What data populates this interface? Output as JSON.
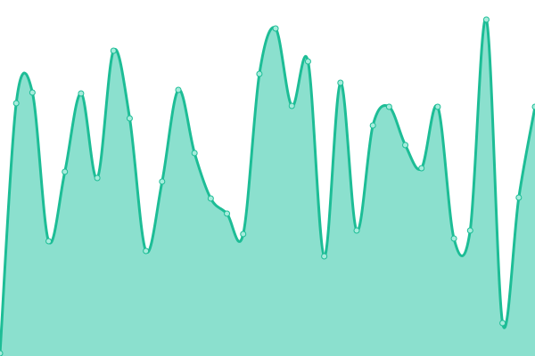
{
  "chart_data": {
    "type": "area",
    "x": [
      0,
      1,
      2,
      3,
      4,
      5,
      6,
      7,
      8,
      9,
      10,
      11,
      12,
      13,
      14,
      15,
      16,
      17,
      18,
      19,
      20,
      21,
      22,
      23,
      24,
      25,
      26,
      27,
      28,
      29,
      30,
      31,
      32,
      33
    ],
    "values": [
      3,
      284,
      296,
      129,
      207,
      295,
      200,
      343,
      267,
      118,
      196,
      299,
      228,
      177,
      160,
      137,
      317,
      368,
      281,
      331,
      112,
      307,
      141,
      259,
      280,
      237,
      211,
      280,
      132,
      141,
      378,
      37,
      178,
      280
    ],
    "ylim": [
      0,
      400
    ],
    "grid": false,
    "legend": "none",
    "colors": {
      "fill": "#8be0ce",
      "line": "#1dbd96",
      "point_fill": "#a6ecdc",
      "point_stroke": "#1dbd96"
    }
  }
}
